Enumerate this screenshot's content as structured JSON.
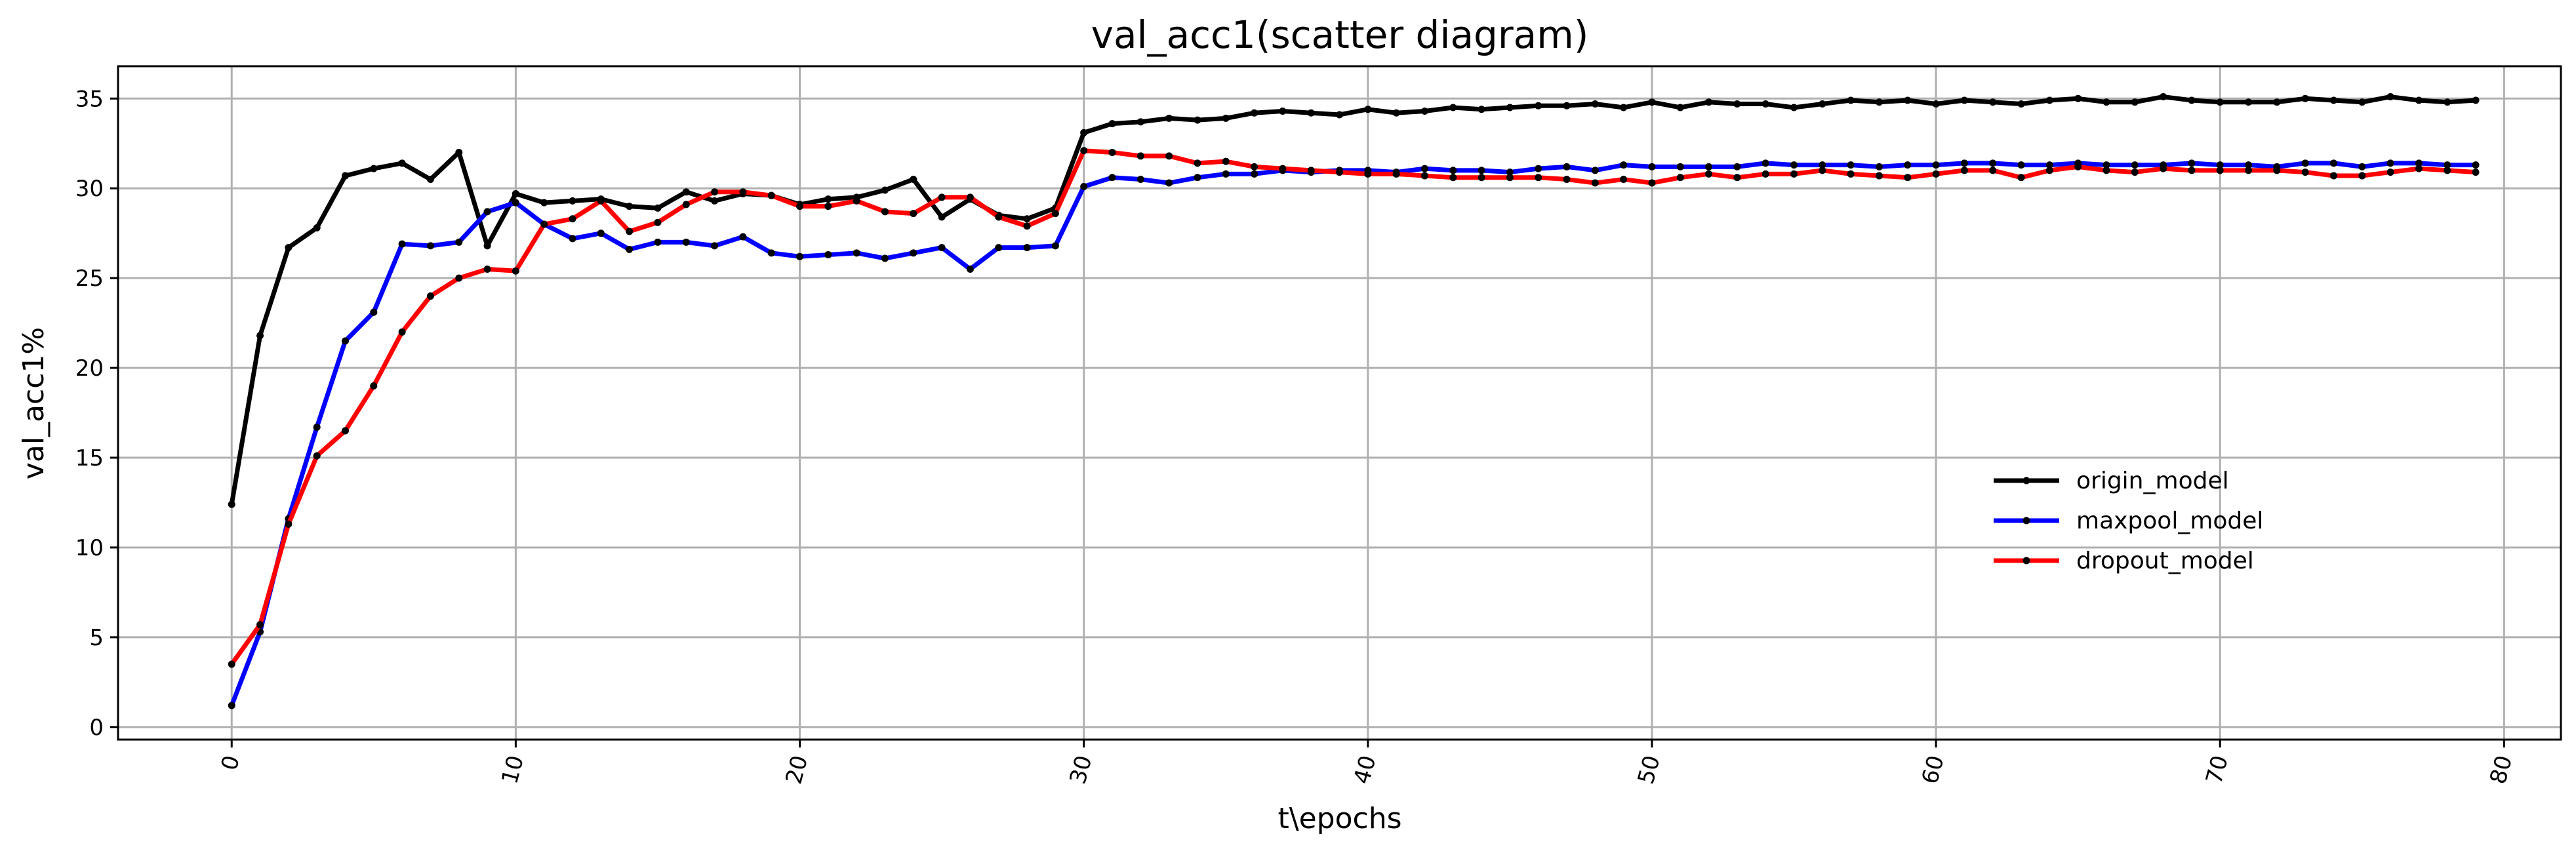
{
  "chart_data": {
    "type": "line",
    "title": "val_acc1(scatter diagram)",
    "xlabel": "t\\epochs",
    "ylabel": "val_acc1%",
    "xlim": [
      -4,
      82
    ],
    "ylim": [
      -0.7,
      36.8
    ],
    "xticks": [
      0,
      10,
      20,
      30,
      40,
      50,
      60,
      70,
      80
    ],
    "yticks": [
      0,
      5,
      10,
      15,
      20,
      25,
      30,
      35
    ],
    "grid": true,
    "legend_position": "center-right",
    "marker_color": "#000000",
    "series": [
      {
        "name": "origin_model",
        "color": "#000000",
        "values": [
          12.4,
          21.8,
          26.7,
          27.8,
          30.7,
          31.1,
          31.4,
          30.5,
          32.0,
          26.8,
          29.7,
          29.2,
          29.3,
          29.4,
          29.0,
          28.9,
          29.8,
          29.3,
          29.7,
          29.6,
          29.1,
          29.4,
          29.5,
          29.9,
          30.5,
          28.4,
          29.4,
          28.5,
          28.3,
          28.9,
          33.1,
          33.6,
          33.7,
          33.9,
          33.8,
          33.9,
          34.2,
          34.3,
          34.2,
          34.1,
          34.4,
          34.2,
          34.3,
          34.5,
          34.4,
          34.5,
          34.6,
          34.6,
          34.7,
          34.5,
          34.8,
          34.5,
          34.8,
          34.7,
          34.7,
          34.5,
          34.7,
          34.9,
          34.8,
          34.9,
          34.7,
          34.9,
          34.8,
          34.7,
          34.9,
          35.0,
          34.8,
          34.8,
          35.1,
          34.9,
          34.8,
          34.8,
          34.8,
          35.0,
          34.9,
          34.8,
          35.1,
          34.9,
          34.8,
          34.9
        ]
      },
      {
        "name": "maxpool_model",
        "color": "#0000ff",
        "values": [
          1.2,
          5.3,
          11.6,
          16.7,
          21.5,
          23.1,
          26.9,
          26.8,
          27.0,
          28.7,
          29.2,
          28.0,
          27.2,
          27.5,
          26.6,
          27.0,
          27.0,
          26.8,
          27.3,
          26.4,
          26.2,
          26.3,
          26.4,
          26.1,
          26.4,
          26.7,
          25.5,
          26.7,
          26.7,
          26.8,
          30.1,
          30.6,
          30.5,
          30.3,
          30.6,
          30.8,
          30.8,
          31.0,
          30.9,
          31.0,
          31.0,
          30.9,
          31.1,
          31.0,
          31.0,
          30.9,
          31.1,
          31.2,
          31.0,
          31.3,
          31.2,
          31.2,
          31.2,
          31.2,
          31.4,
          31.3,
          31.3,
          31.3,
          31.2,
          31.3,
          31.3,
          31.4,
          31.4,
          31.3,
          31.3,
          31.4,
          31.3,
          31.3,
          31.3,
          31.4,
          31.3,
          31.3,
          31.2,
          31.4,
          31.4,
          31.2,
          31.4,
          31.4,
          31.3,
          31.3
        ]
      },
      {
        "name": "dropout_model",
        "color": "#ff0000",
        "values": [
          3.5,
          5.7,
          11.3,
          15.1,
          16.5,
          19.0,
          22.0,
          24.0,
          25.0,
          25.5,
          25.4,
          28.0,
          28.3,
          29.3,
          27.6,
          28.1,
          29.1,
          29.8,
          29.8,
          29.6,
          29.0,
          29.0,
          29.3,
          28.7,
          28.6,
          29.5,
          29.5,
          28.4,
          27.9,
          28.6,
          32.1,
          32.0,
          31.8,
          31.8,
          31.4,
          31.5,
          31.2,
          31.1,
          31.0,
          30.9,
          30.8,
          30.8,
          30.7,
          30.6,
          30.6,
          30.6,
          30.6,
          30.5,
          30.3,
          30.5,
          30.3,
          30.6,
          30.8,
          30.6,
          30.8,
          30.8,
          31.0,
          30.8,
          30.7,
          30.6,
          30.8,
          31.0,
          31.0,
          30.6,
          31.0,
          31.2,
          31.0,
          30.9,
          31.1,
          31.0,
          31.0,
          31.0,
          31.0,
          30.9,
          30.7,
          30.7,
          30.9,
          31.1,
          31.0,
          30.9
        ]
      }
    ]
  }
}
